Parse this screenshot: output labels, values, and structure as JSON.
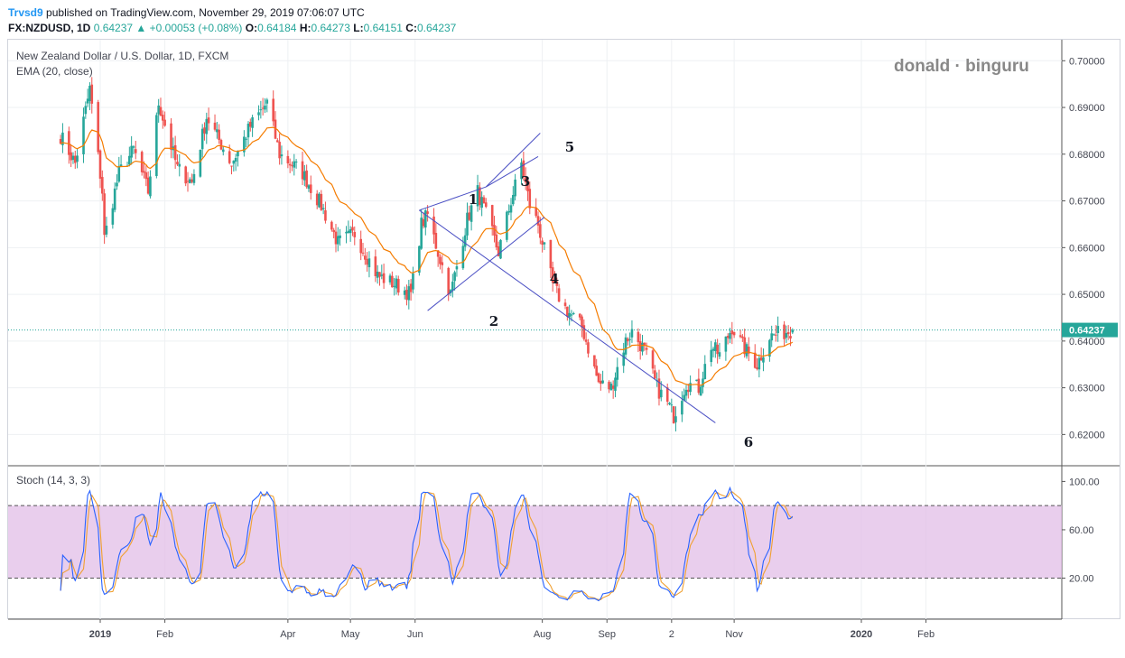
{
  "header": {
    "author": "Trvsd9",
    "published": "published on TradingView.com, November 29, 2019 07:06:07 UTC",
    "symbol": "FX:NZDUSD, 1D",
    "last": "0.64237",
    "change": "+0.00053 (+0.08%)",
    "open_label": "O:",
    "open": "0.64184",
    "high_label": "H:",
    "high": "0.64273",
    "low_label": "L:",
    "low": "0.64151",
    "close_label": "C:",
    "close": "0.64237"
  },
  "legend": {
    "title": "New Zealand Dollar / U.S. Dollar, 1D, FXCM",
    "ema": "EMA (20, close)",
    "stoch": "Stoch (14, 3, 3)"
  },
  "watermark": "donald · binguru",
  "colors": {
    "up": "#26a69a",
    "down": "#ef5350",
    "ema": "#f57c00",
    "k_line": "#2962ff",
    "d_line": "#f0a030",
    "band": "#e1bee7",
    "pattern_line": "#4a4fc4",
    "price_tag": "#26a69a"
  },
  "chart_data": [
    {
      "type": "candlestick",
      "title": "New Zealand Dollar / U.S. Dollar, 1D, FXCM",
      "ylim": [
        0.6135,
        0.7045
      ],
      "y_ticks": [
        "0.62000",
        "0.63000",
        "0.64000",
        "0.65000",
        "0.66000",
        "0.67000",
        "0.68000",
        "0.69000",
        "0.70000"
      ],
      "x_ticks": [
        "2019",
        "Feb",
        "Apr",
        "May",
        "Jun",
        "Aug",
        "Sep",
        "2",
        "Nov",
        "2020",
        "Feb"
      ],
      "last_price_label": "0.64237",
      "anchors": [
        {
          "date": "2018-12-13",
          "p": 0.684
        },
        {
          "date": "2018-12-20",
          "p": 0.678
        },
        {
          "date": "2018-12-27",
          "p": 0.694
        },
        {
          "date": "2019-01-02",
          "p": 0.672
        },
        {
          "date": "2019-01-03",
          "p": 0.662
        },
        {
          "date": "2019-01-10",
          "p": 0.676
        },
        {
          "date": "2019-01-17",
          "p": 0.681
        },
        {
          "date": "2019-01-24",
          "p": 0.672
        },
        {
          "date": "2019-01-29",
          "p": 0.691
        },
        {
          "date": "2019-02-07",
          "p": 0.677
        },
        {
          "date": "2019-02-14",
          "p": 0.674
        },
        {
          "date": "2019-02-21",
          "p": 0.688
        },
        {
          "date": "2019-03-05",
          "p": 0.678
        },
        {
          "date": "2019-03-14",
          "p": 0.686
        },
        {
          "date": "2019-03-22",
          "p": 0.691
        },
        {
          "date": "2019-03-28",
          "p": 0.68
        },
        {
          "date": "2019-04-08",
          "p": 0.676
        },
        {
          "date": "2019-04-17",
          "p": 0.669
        },
        {
          "date": "2019-04-25",
          "p": 0.661
        },
        {
          "date": "2019-05-03",
          "p": 0.663
        },
        {
          "date": "2019-05-14",
          "p": 0.654
        },
        {
          "date": "2019-05-23",
          "p": 0.652
        },
        {
          "date": "2019-05-30",
          "p": 0.65
        },
        {
          "date": "2019-06-04",
          "p": 0.665
        },
        {
          "date": "2019-06-07",
          "p": 0.667
        },
        {
          "date": "2019-06-12",
          "p": 0.659
        },
        {
          "date": "2019-06-18",
          "p": 0.65
        },
        {
          "date": "2019-06-26",
          "p": 0.666
        },
        {
          "date": "2019-07-01",
          "p": 0.672
        },
        {
          "date": "2019-07-05",
          "p": 0.667
        },
        {
          "date": "2019-07-11",
          "p": 0.659
        },
        {
          "date": "2019-07-17",
          "p": 0.67
        },
        {
          "date": "2019-07-22",
          "p": 0.678
        },
        {
          "date": "2019-07-26",
          "p": 0.669
        },
        {
          "date": "2019-07-30",
          "p": 0.665
        },
        {
          "date": "2019-08-06",
          "p": 0.652
        },
        {
          "date": "2019-08-12",
          "p": 0.647
        },
        {
          "date": "2019-08-20",
          "p": 0.643
        },
        {
          "date": "2019-08-28",
          "p": 0.631
        },
        {
          "date": "2019-09-03",
          "p": 0.63
        },
        {
          "date": "2019-09-10",
          "p": 0.64
        },
        {
          "date": "2019-09-13",
          "p": 0.642
        },
        {
          "date": "2019-09-19",
          "p": 0.638
        },
        {
          "date": "2019-09-25",
          "p": 0.63
        },
        {
          "date": "2019-10-01",
          "p": 0.626
        },
        {
          "date": "2019-10-03",
          "p": 0.624
        },
        {
          "date": "2019-10-09",
          "p": 0.631
        },
        {
          "date": "2019-10-15",
          "p": 0.63
        },
        {
          "date": "2019-10-21",
          "p": 0.639
        },
        {
          "date": "2019-10-25",
          "p": 0.637
        },
        {
          "date": "2019-10-31",
          "p": 0.643
        },
        {
          "date": "2019-11-05",
          "p": 0.639
        },
        {
          "date": "2019-11-12",
          "p": 0.635
        },
        {
          "date": "2019-11-18",
          "p": 0.641
        },
        {
          "date": "2019-11-29",
          "p": 0.6424
        }
      ],
      "ema_period": 20,
      "wave_labels": [
        "1",
        "2",
        "3",
        "4",
        "5",
        "6"
      ],
      "pattern_lines": [
        {
          "x1": "2019-06-03",
          "y1": 0.668,
          "x2": "2019-10-23",
          "y2": 0.6225
        },
        {
          "x1": "2019-06-03",
          "y1": 0.668,
          "x2": "2019-07-05",
          "y2": 0.673
        },
        {
          "x1": "2019-06-07",
          "y1": 0.6465,
          "x2": "2019-08-02",
          "y2": 0.6665
        },
        {
          "x1": "2019-07-05",
          "y1": 0.673,
          "x2": "2019-07-31",
          "y2": 0.6845
        },
        {
          "x1": "2019-07-05",
          "y1": 0.673,
          "x2": "2019-07-30",
          "y2": 0.6795
        }
      ]
    },
    {
      "type": "line",
      "title": "Stoch (14, 3, 3)",
      "series": [
        {
          "values": []
        },
        {
          "values": []
        }
      ],
      "ylim": [
        -14,
        113
      ],
      "y_ticks": [
        "20.00",
        "60.00",
        "100.00"
      ],
      "band": [
        20,
        80
      ]
    }
  ]
}
